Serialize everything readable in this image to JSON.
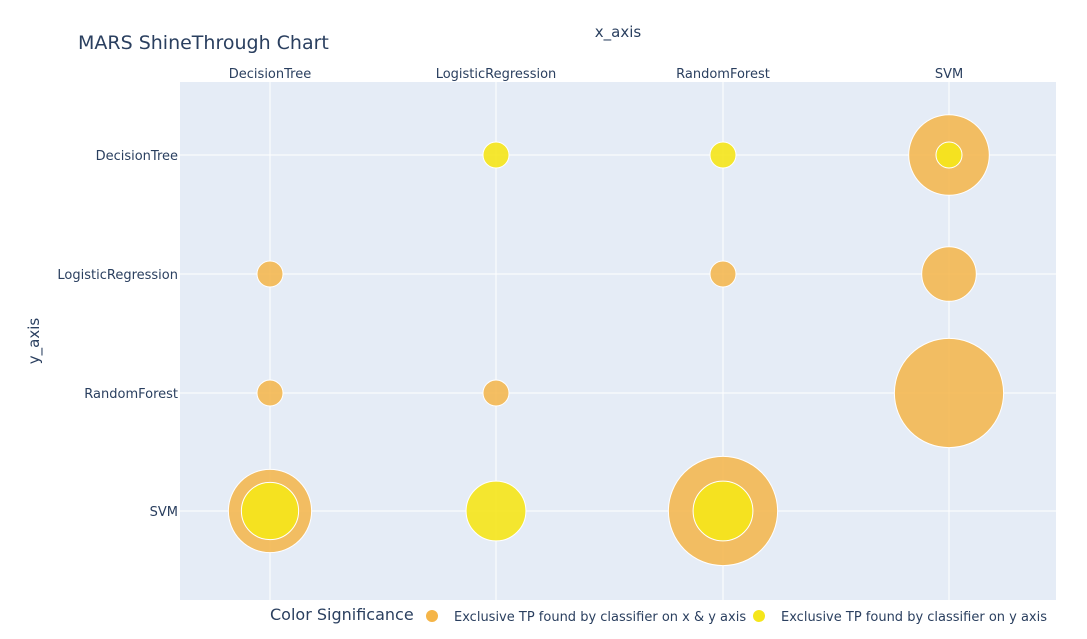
{
  "chart_data": {
    "type": "scatter",
    "title": "MARS ShineThrough Chart",
    "xlabel": "x_axis",
    "ylabel": "y_axis",
    "x_categories": [
      "DecisionTree",
      "LogisticRegression",
      "RandomForest",
      "SVM"
    ],
    "y_categories": [
      "DecisionTree",
      "LogisticRegression",
      "RandomForest",
      "SVM"
    ],
    "x_axis_position": "top",
    "grid": true,
    "legend": {
      "title": "Color Significance",
      "placement": "bottom",
      "entries": [
        {
          "label": "Exclusive TP found by classifier on x & y axis",
          "color": "#f5b548"
        },
        {
          "label": "Exclusive TP found by classifier on y axis",
          "color": "#f5e61a"
        }
      ]
    },
    "series": [
      {
        "name": "Exclusive TP found by classifier on x & y axis",
        "color": "#f5b548",
        "points": [
          {
            "x": "SVM",
            "y": "DecisionTree",
            "size": 3.1
          },
          {
            "x": "DecisionTree",
            "y": "LogisticRegression",
            "size": 1
          },
          {
            "x": "RandomForest",
            "y": "LogisticRegression",
            "size": 1
          },
          {
            "x": "SVM",
            "y": "LogisticRegression",
            "size": 2.1
          },
          {
            "x": "DecisionTree",
            "y": "RandomForest",
            "size": 1
          },
          {
            "x": "LogisticRegression",
            "y": "RandomForest",
            "size": 1
          },
          {
            "x": "SVM",
            "y": "RandomForest",
            "size": 4.2
          },
          {
            "x": "DecisionTree",
            "y": "SVM",
            "size": 3.2
          },
          {
            "x": "RandomForest",
            "y": "SVM",
            "size": 4.2
          }
        ]
      },
      {
        "name": "Exclusive TP found by classifier on y axis",
        "color": "#f5e61a",
        "points": [
          {
            "x": "LogisticRegression",
            "y": "DecisionTree",
            "size": 1
          },
          {
            "x": "RandomForest",
            "y": "DecisionTree",
            "size": 1
          },
          {
            "x": "SVM",
            "y": "DecisionTree",
            "size": 1
          },
          {
            "x": "DecisionTree",
            "y": "SVM",
            "size": 2.2
          },
          {
            "x": "LogisticRegression",
            "y": "SVM",
            "size": 2.3
          },
          {
            "x": "RandomForest",
            "y": "SVM",
            "size": 2.3
          }
        ]
      }
    ]
  },
  "style": {
    "plot_bg": "#e5ecf6",
    "grid_color": "#ffffff",
    "text_color": "#2a3f5f"
  }
}
